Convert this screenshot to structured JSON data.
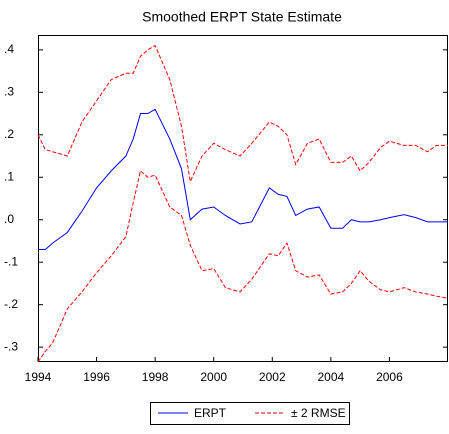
{
  "chart_data": {
    "type": "line",
    "title": "Smoothed ERPT State Estimate",
    "x": [
      1994.0,
      1994.25,
      1994.5,
      1995.0,
      1995.5,
      1996.0,
      1996.5,
      1997.0,
      1997.25,
      1997.5,
      1997.75,
      1998.0,
      1998.5,
      1998.9,
      1999.2,
      1999.6,
      2000.0,
      2000.4,
      2000.9,
      2001.3,
      2001.9,
      2002.2,
      2002.5,
      2002.8,
      2003.2,
      2003.6,
      2004.0,
      2004.4,
      2004.7,
      2005.0,
      2005.3,
      2005.7,
      2006.0,
      2006.5,
      2006.9,
      2007.3,
      2007.6,
      2008.0
    ],
    "series": [
      {
        "name": "ERPT",
        "color": "#0000ff",
        "dash": false,
        "values": [
          -0.07,
          -0.07,
          -0.055,
          -0.03,
          0.02,
          0.075,
          0.115,
          0.15,
          0.19,
          0.25,
          0.25,
          0.26,
          0.19,
          0.12,
          0.0,
          0.025,
          0.03,
          0.01,
          -0.01,
          -0.005,
          0.075,
          0.06,
          0.055,
          0.01,
          0.025,
          0.03,
          -0.02,
          -0.02,
          0.0,
          -0.005,
          -0.005,
          0.0,
          0.005,
          0.012,
          0.005,
          -0.005,
          -0.005,
          -0.005
        ]
      },
      {
        "name": "± 2 RMSE",
        "color": "#ff0000",
        "dash": true,
        "upper": [
          0.2,
          0.165,
          0.16,
          0.15,
          0.23,
          0.28,
          0.33,
          0.345,
          0.345,
          0.385,
          0.4,
          0.41,
          0.33,
          0.22,
          0.09,
          0.15,
          0.18,
          0.165,
          0.15,
          0.18,
          0.23,
          0.22,
          0.2,
          0.13,
          0.18,
          0.19,
          0.135,
          0.135,
          0.15,
          0.115,
          0.135,
          0.17,
          0.185,
          0.175,
          0.175,
          0.16,
          0.175,
          0.175
        ],
        "lower": [
          -0.335,
          -0.31,
          -0.29,
          -0.21,
          -0.17,
          -0.125,
          -0.085,
          -0.04,
          0.04,
          0.115,
          0.1,
          0.105,
          0.03,
          0.01,
          -0.06,
          -0.12,
          -0.115,
          -0.16,
          -0.17,
          -0.14,
          -0.08,
          -0.085,
          -0.055,
          -0.12,
          -0.135,
          -0.13,
          -0.175,
          -0.17,
          -0.15,
          -0.12,
          -0.145,
          -0.165,
          -0.17,
          -0.16,
          -0.17,
          -0.175,
          -0.18,
          -0.185
        ]
      }
    ],
    "xlim": [
      1994,
      2008
    ],
    "xticks": [
      1994,
      1996,
      1998,
      2000,
      2002,
      2004,
      2006
    ],
    "ylim": [
      -0.335,
      0.435
    ],
    "yticks": [
      {
        "value": -0.3,
        "label": "-.3"
      },
      {
        "value": -0.2,
        "label": "-.2"
      },
      {
        "value": -0.1,
        "label": "-.1"
      },
      {
        "value": 0,
        "label": ".0"
      },
      {
        "value": 0.1,
        "label": ".1"
      },
      {
        "value": 0.2,
        "label": ".2"
      },
      {
        "value": 0.3,
        "label": ".3"
      },
      {
        "value": 0.4,
        "label": ".4"
      }
    ],
    "grid": false
  }
}
